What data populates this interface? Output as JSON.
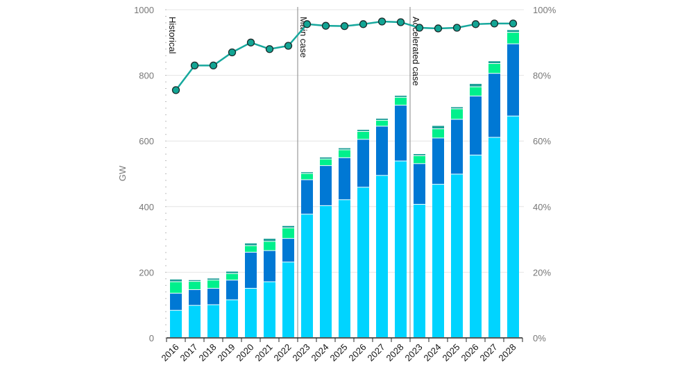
{
  "chart_data": {
    "type": "bar",
    "stacked": true,
    "ylabel": "GW",
    "ylim": [
      0,
      1000
    ],
    "yticks": [
      0,
      200,
      400,
      600,
      800,
      1000
    ],
    "y2lim": [
      0,
      100
    ],
    "y2ticks": [
      "0%",
      "20%",
      "40%",
      "60%",
      "80%",
      "100%"
    ],
    "grid": true,
    "categories": [
      "2016",
      "2017",
      "2018",
      "2019",
      "2020",
      "2021",
      "2022",
      "2023",
      "2024",
      "2025",
      "2026",
      "2027",
      "2028",
      "2023",
      "2024",
      "2025",
      "2026",
      "2027",
      "2028"
    ],
    "sections": [
      {
        "label": "Historical",
        "start": 0
      },
      {
        "label": "Main case",
        "start": 7
      },
      {
        "label": "Accelerated case",
        "start": 13
      }
    ],
    "series": [
      {
        "color": "#00d4ff",
        "values": [
          83,
          98,
          100,
          115,
          150,
          170,
          230,
          376,
          402,
          420,
          458,
          494,
          538,
          406,
          467,
          498,
          556,
          610,
          675
        ]
      },
      {
        "color": "#0078d4",
        "values": [
          52,
          48,
          50,
          60,
          110,
          95,
          72,
          105,
          122,
          128,
          146,
          150,
          170,
          124,
          141,
          167,
          180,
          195,
          220
        ]
      },
      {
        "color": "#00f08c",
        "values": [
          35,
          25,
          25,
          20,
          20,
          28,
          32,
          19,
          20,
          24,
          24,
          18,
          24,
          24,
          28,
          32,
          28,
          30,
          35
        ]
      },
      {
        "color": "#1a9e96",
        "values": [
          8,
          5,
          6,
          7,
          8,
          9,
          7,
          5,
          6,
          6,
          6,
          6,
          6,
          6,
          10,
          6,
          10,
          8,
          8
        ]
      }
    ],
    "line": {
      "axis": "right",
      "unit": "%",
      "color": "#17a89d",
      "values": [
        75.5,
        83,
        83,
        87,
        90,
        88,
        89,
        95.6,
        95.1,
        95,
        95.6,
        96.4,
        96.2,
        94.5,
        94.3,
        94.5,
        95.6,
        95.8,
        95.8
      ]
    }
  }
}
